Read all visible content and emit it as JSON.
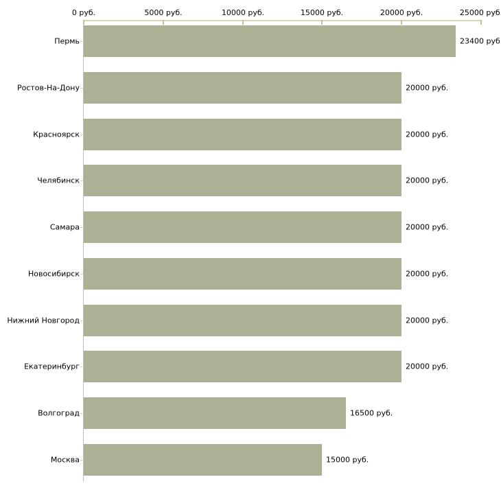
{
  "chart_data": {
    "type": "bar",
    "orientation": "horizontal",
    "title": "",
    "xlabel": "",
    "ylabel": "",
    "unit": "руб.",
    "xlim": [
      0,
      25000
    ],
    "grid": false,
    "legend": "none",
    "categories": [
      "Пермь",
      "Ростов-На-Дону",
      "Красноярск",
      "Челябинск",
      "Самара",
      "Новосибирск",
      "Нижний Новгород",
      "Екатеринбург",
      "Волгоград",
      "Москва"
    ],
    "values": [
      23400,
      20000,
      20000,
      20000,
      20000,
      20000,
      20000,
      20000,
      16500,
      15000
    ],
    "value_labels": [
      "23400 руб.",
      "20000 руб.",
      "20000 руб.",
      "20000 руб.",
      "20000 руб.",
      "20000 руб.",
      "20000 руб.",
      "20000 руб.",
      "16500 руб.",
      "15000 руб."
    ],
    "x_ticks": [
      0,
      5000,
      10000,
      15000,
      20000,
      25000
    ],
    "x_tick_labels": [
      "0 руб.",
      "5000 руб.",
      "10000 руб.",
      "15000 руб.",
      "20000 руб.",
      "25000 руб."
    ],
    "colors": {
      "bar": "#abb194",
      "axis_line": "#d9d5ba",
      "axis_tick": "#c5bf99",
      "category_tick": "#d2cdad",
      "baseline": "#bdbdbd",
      "text": "#000000",
      "background": "#ffffff"
    }
  }
}
